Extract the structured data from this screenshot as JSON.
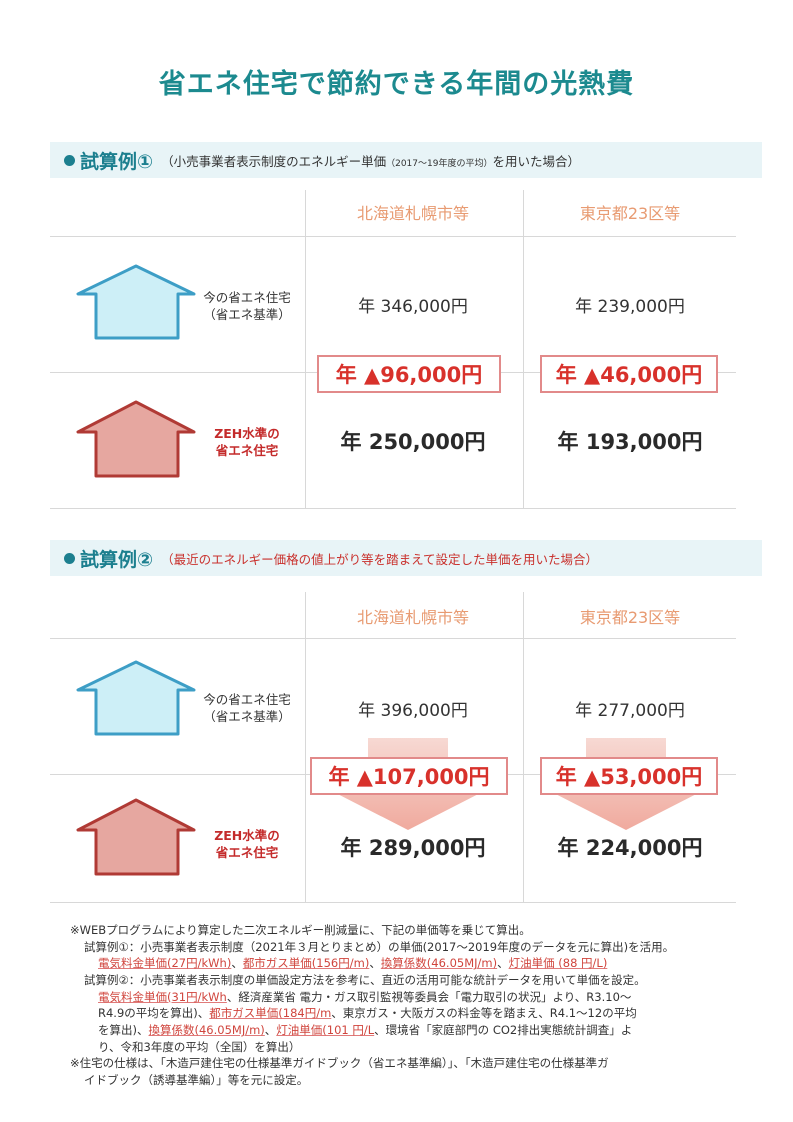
{
  "title": "省エネ住宅で節約できる年間の光熱費",
  "cols": [
    "北海道札幌市等",
    "東京都23区等"
  ],
  "example1": {
    "label": "試算例①",
    "caption_a": "（小売事業者表示制度のエネルギー単価",
    "caption_small": "（2017～19年度の平均）",
    "caption_b": "を用いた場合）",
    "current_label_1": "今の省エネ住宅",
    "current_label_2": "（省エネ基準）",
    "zeh_label_1": "ZEH水準の",
    "zeh_label_2": "省エネ住宅",
    "current": [
      "年 346,000円",
      "年 239,000円"
    ],
    "savings": [
      "年 ▲96,000円",
      "年 ▲46,000円"
    ],
    "zeh": [
      "年 250,000円",
      "年 193,000円"
    ]
  },
  "example2": {
    "label": "試算例②",
    "caption": "（最近のエネルギー価格の値上がり等を踏まえて設定した単価を用いた場合）",
    "current_label_1": "今の省エネ住宅",
    "current_label_2": "（省エネ基準）",
    "zeh_label_1": "ZEH水準の",
    "zeh_label_2": "省エネ住宅",
    "current": [
      "年 396,000円",
      "年 277,000円"
    ],
    "savings": [
      "年 ▲107,000円",
      "年 ▲53,000円"
    ],
    "zeh": [
      "年 289,000円",
      "年 224,000円"
    ]
  },
  "notes": {
    "n1": "※WEBプログラムにより算定した二次エネルギー削減量に、下記の単価等を乗じて算出。",
    "n2": "試算例①：小売事業者表示制度（2021年３月とりまとめ）の単価(2017～2019年度のデータを元に算出)を活用。",
    "n3a": "電気料金単価(27円/kWh)",
    "n3b": "、",
    "n3c": "都市ガス単価(156円/m)",
    "n3d": "、",
    "n3e": "換算係数(46.05MJ/m)",
    "n3f": "、",
    "n3g": "灯油単価 (88 円/L)",
    "n4": "試算例②：小売事業者表示制度の単価設定方法を参考に、直近の活用可能な統計データを用いて単価を設定。",
    "n5a": "電気料金単価(31円/kWh",
    "n5b": "、経済産業省 電力・ガス取引監視等委員会「電力取引の状況」より、R3.10～",
    "n6a": "R4.9の平均を算出)、",
    "n6b": "都市ガス単価(184円/m",
    "n6c": "、東京ガス・大阪ガスの料金等を踏まえ、R4.1～12の平均",
    "n7a": "を算出)、",
    "n7b": "換算係数(46.05MJ/m)",
    "n7c": "、",
    "n7d": "灯油単価(101 円/L",
    "n7e": "、環境省「家庭部門の CO2排出実態統計調査」よ",
    "n8": "り、令和3年度の平均（全国）を算出）",
    "n9": "※住宅の仕様は、「木造戸建住宅の仕様基準ガイドブック（省エネ基準編）」、「木造戸建住宅の仕様基準ガ",
    "n10": "イドブック（誘導基準編）」等を元に設定。"
  },
  "colors": {
    "teal": "#1c8a8f",
    "accent_orange": "#e89b72",
    "red": "#d8312b",
    "house_blue": "#cdeff7",
    "house_red": "#e6a7a0"
  }
}
